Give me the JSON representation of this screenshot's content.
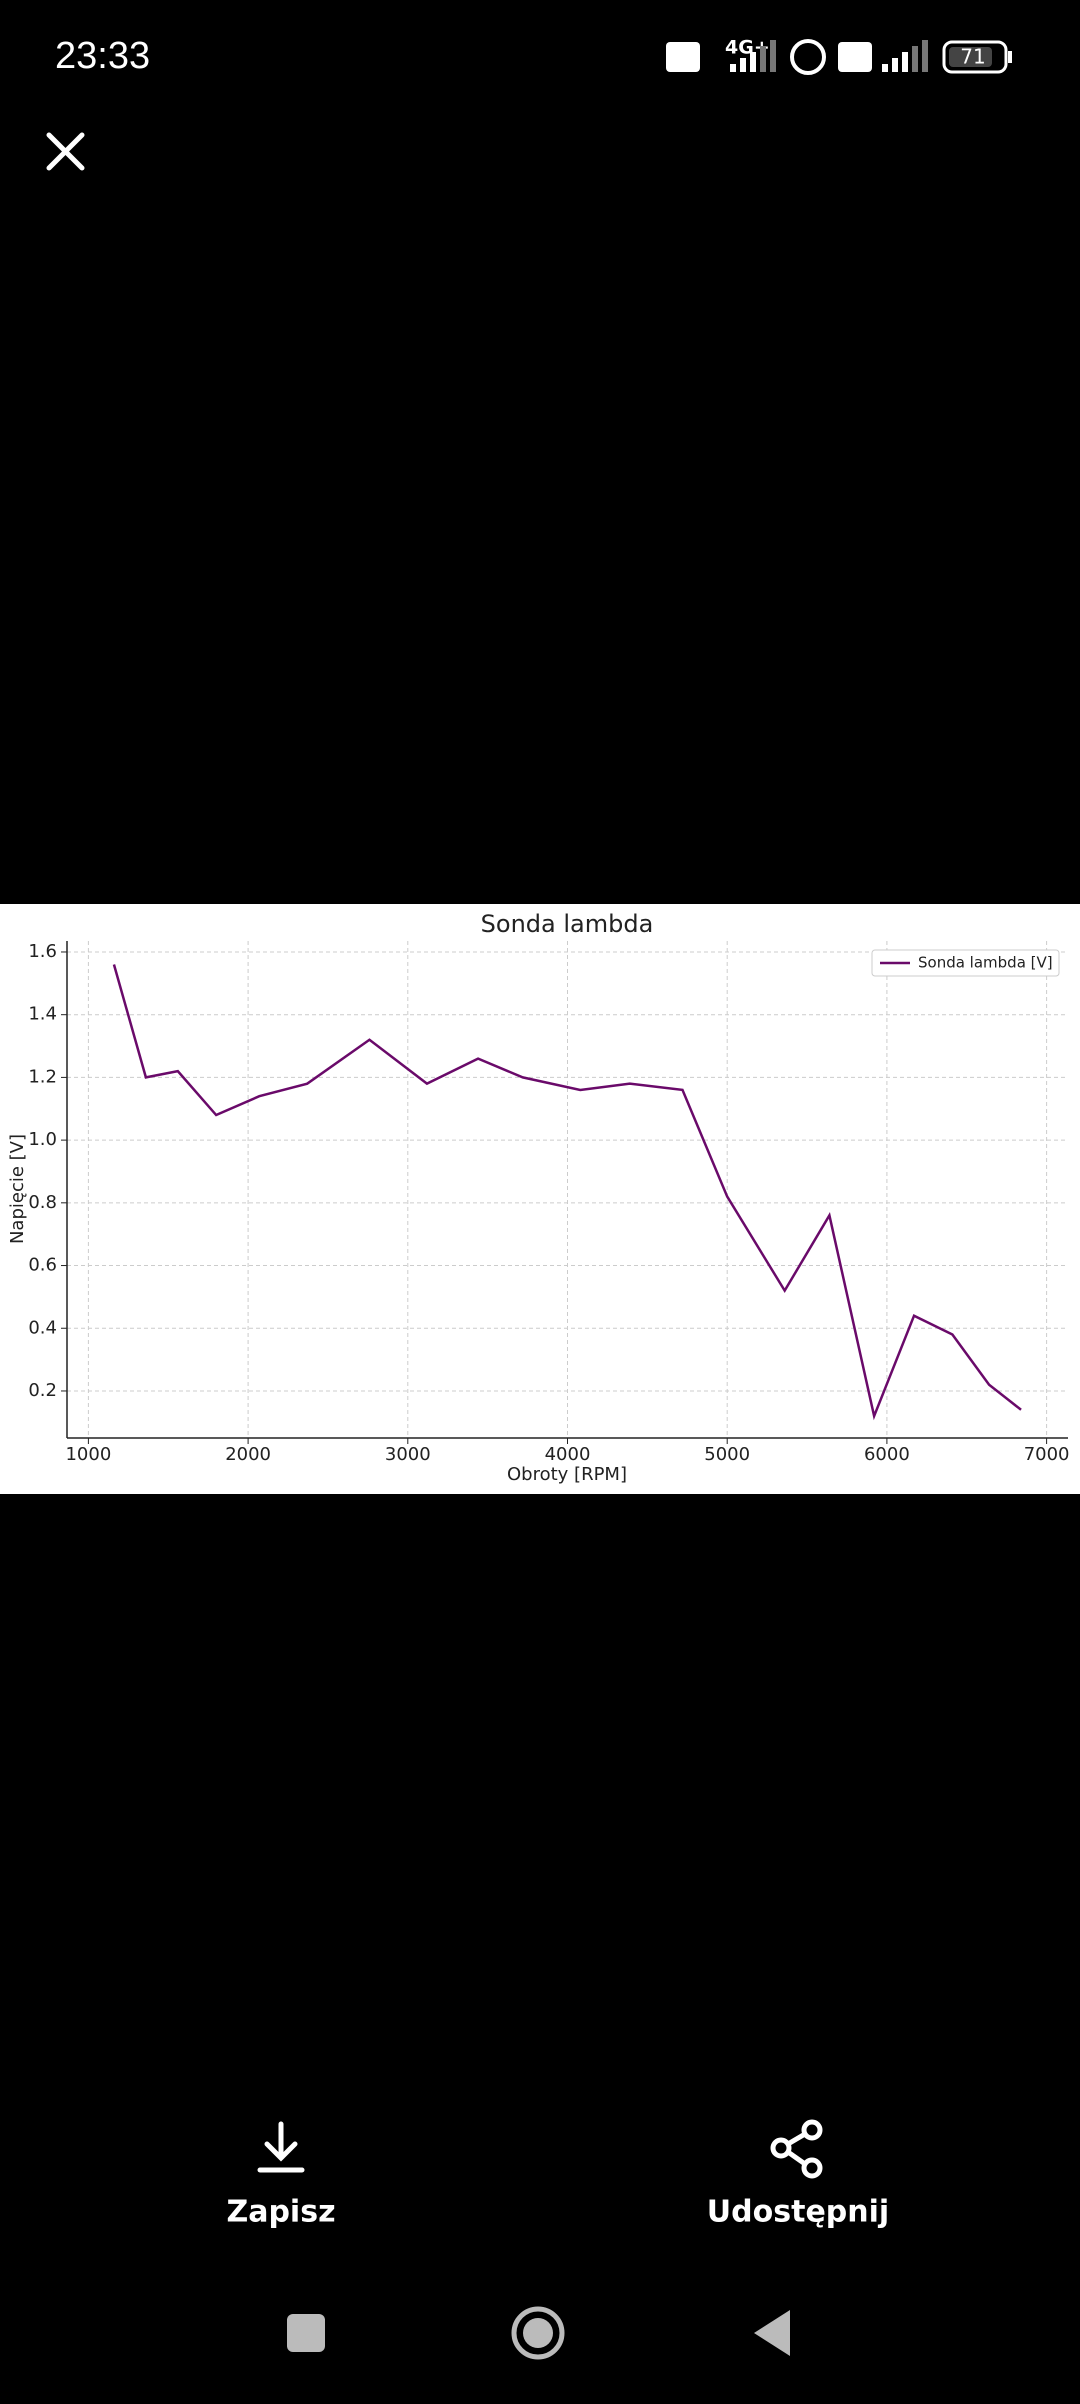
{
  "status_bar": {
    "time": "23:33",
    "network": "4G+",
    "battery": "71"
  },
  "chart_data": {
    "type": "line",
    "title": "Sonda lambda",
    "x_label": "Obroty [RPM]",
    "y_label": "Napięcie [V]",
    "x": [
      1160,
      1360,
      1560,
      1800,
      2070,
      2370,
      2760,
      3120,
      3440,
      3720,
      4080,
      4390,
      4720,
      5000,
      5360,
      5640,
      5920,
      6170,
      6410,
      6640,
      6840
    ],
    "series": [
      {
        "name": "Sonda lambda [V]",
        "color": "#6a0a6a",
        "values": [
          1.56,
          1.2,
          1.22,
          1.08,
          1.14,
          1.18,
          1.32,
          1.18,
          1.26,
          1.2,
          1.16,
          1.18,
          1.16,
          0.82,
          0.52,
          0.76,
          0.12,
          0.44,
          0.38,
          0.22,
          0.14
        ]
      }
    ],
    "xlim": [
      866,
      7134
    ],
    "ylim": [
      0.05,
      1.635
    ],
    "xticks": [
      1000,
      2000,
      3000,
      4000,
      5000,
      6000,
      7000
    ],
    "yticks": [
      0.2,
      0.4,
      0.6,
      0.8,
      {
        "value": 1,
        "label": "1.0"
      },
      1.2,
      1.4,
      1.6
    ],
    "grid": true,
    "legend": "upper right"
  },
  "actions": {
    "save": "Zapisz",
    "share": "Udostępnij"
  }
}
